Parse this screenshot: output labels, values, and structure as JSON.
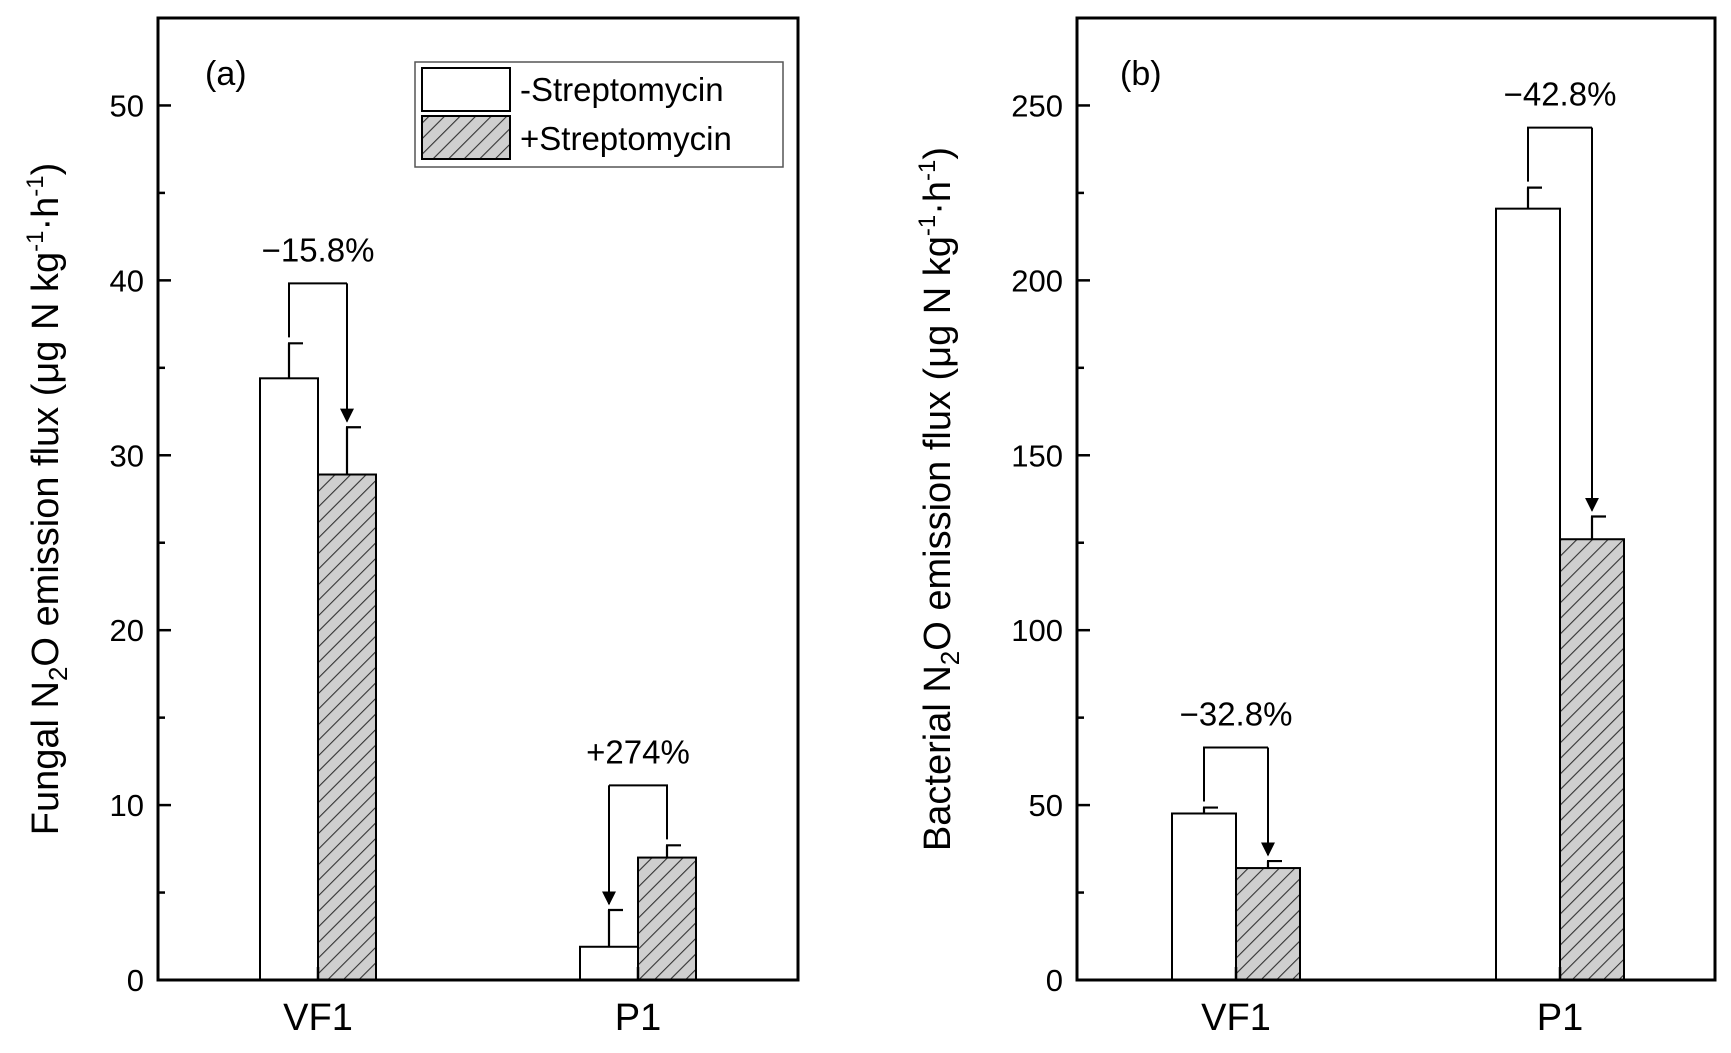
{
  "chart_data": [
    {
      "type": "bar",
      "panel": "(a)",
      "categories": [
        "VF1",
        "P1"
      ],
      "ylabel_parts": [
        "Fungal N",
        "2",
        "O emission flux (μg N kg",
        "-1",
        "·h",
        "-1",
        ")"
      ],
      "ylim": [
        0,
        55
      ],
      "yticks": [
        "0",
        "10",
        "20",
        "30",
        "40",
        "50"
      ],
      "ytick_values": [
        0,
        10,
        20,
        30,
        40,
        50
      ],
      "series": [
        {
          "name": "-Streptomycin",
          "pattern": "open",
          "values": [
            34.4,
            1.9
          ],
          "errors": [
            2.0,
            2.1
          ]
        },
        {
          "name": "+Streptomycin",
          "pattern": "hatch",
          "values": [
            28.9,
            7.0
          ],
          "errors": [
            2.7,
            0.7
          ]
        }
      ],
      "annotations": [
        {
          "text": "−15.8%",
          "category": 0,
          "direction": "down"
        },
        {
          "text": "+274%",
          "category": 1,
          "direction": "up"
        }
      ],
      "legend": {
        "position": "top-right",
        "entries": [
          "-Streptomycin",
          "+Streptomycin"
        ]
      }
    },
    {
      "type": "bar",
      "panel": "(b)",
      "categories": [
        "VF1",
        "P1"
      ],
      "ylabel_parts": [
        "Bacterial N",
        "2",
        "O emission flux (μg N kg",
        "-1",
        "·h",
        "-1",
        ")"
      ],
      "ylim": [
        0,
        275
      ],
      "yticks": [
        "0",
        "50",
        "100",
        "150",
        "200",
        "250"
      ],
      "ytick_values": [
        0,
        50,
        100,
        150,
        200,
        250
      ],
      "series": [
        {
          "name": "-Streptomycin",
          "pattern": "open",
          "values": [
            47.6,
            220.5
          ],
          "errors": [
            1.7,
            6.0
          ]
        },
        {
          "name": "+Streptomycin",
          "pattern": "hatch",
          "values": [
            32.0,
            126.0
          ],
          "errors": [
            2.0,
            6.5
          ]
        }
      ],
      "annotations": [
        {
          "text": "−32.8%",
          "category": 0,
          "direction": "down"
        },
        {
          "text": "−42.8%",
          "category": 1,
          "direction": "down"
        }
      ]
    }
  ]
}
